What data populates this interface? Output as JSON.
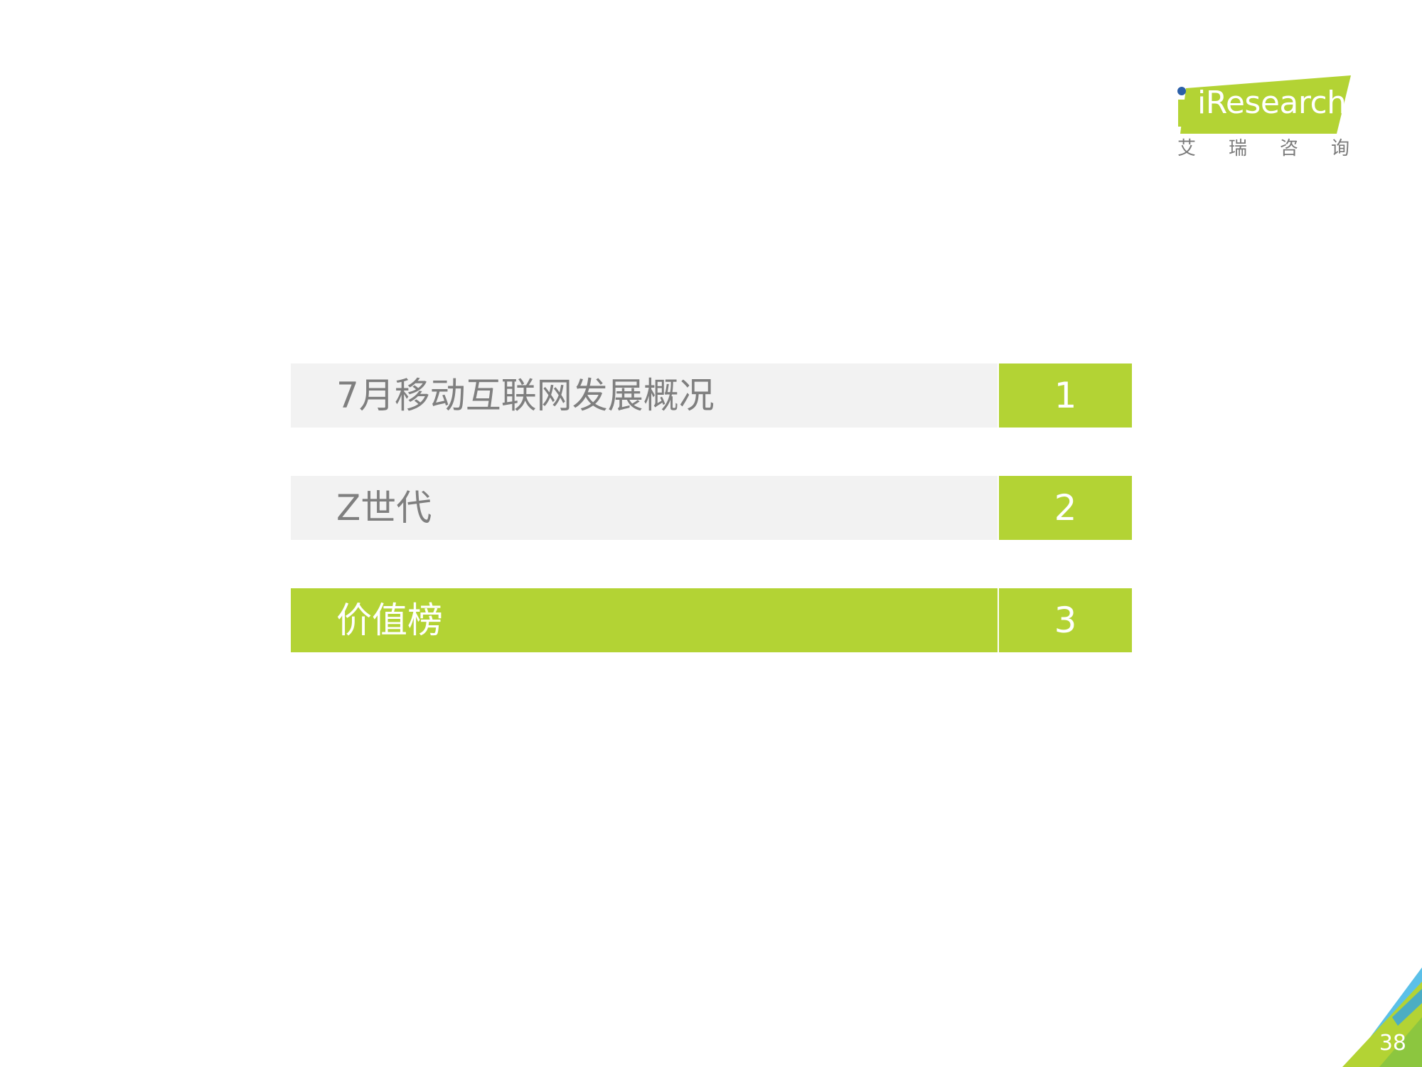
{
  "brand": {
    "logo_text": "iResearch",
    "logo_subtitle": "艾瑞咨询",
    "logo_green": "#b3d334",
    "logo_blue": "#2b5fa8"
  },
  "agenda": {
    "items": [
      {
        "label": "7月移动互联网发展概况",
        "number": "1",
        "active": false
      },
      {
        "label": "Z世代",
        "number": "2",
        "active": false
      },
      {
        "label": "价值榜",
        "number": "3",
        "active": true
      }
    ],
    "accent_color": "#b3d334",
    "inactive_bg": "#f2f2f2",
    "inactive_text": "#7f7f7f"
  },
  "footer": {
    "page_number": "38"
  }
}
